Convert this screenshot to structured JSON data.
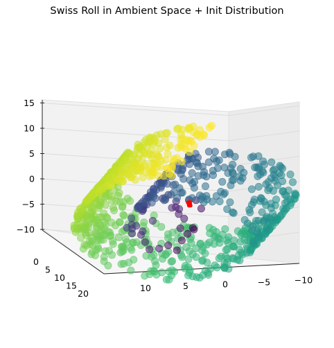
{
  "chart_data": {
    "type": "scatter",
    "projection": "3d",
    "title": "Swiss Roll in Ambient Space + Init Distribution",
    "xlabel": "",
    "ylabel": "",
    "zlabel": "",
    "grid": true,
    "xlim": [
      -11,
      15
    ],
    "ylim": [
      0,
      21
    ],
    "zlim": [
      -12,
      16
    ],
    "x_ticks": [
      -10,
      -5,
      0,
      5,
      10
    ],
    "y_ticks": [
      0,
      5,
      10,
      15,
      20
    ],
    "z_ticks": [
      -10,
      -5,
      0,
      5,
      10,
      15
    ],
    "colormap": "viridis",
    "colors": {
      "init_distribution": "#ff0000",
      "pane": "#f2f2f2",
      "grid": "#d9d9d9"
    },
    "series": [
      {
        "role": "swiss-roll",
        "description": "Points on a Swiss roll surface colored by roll parameter t; x = t*cos(t), z = t*sin(t), y spans the depth",
        "t_range": [
          4.7,
          14.1
        ],
        "y_range": [
          0,
          21
        ],
        "marker_alpha": 0.55
      },
      {
        "role": "init-distribution",
        "description": "Small cluster of red points near the origin",
        "center": [
          1.0,
          10.5,
          1.0
        ],
        "color": "#ff0000"
      }
    ]
  }
}
